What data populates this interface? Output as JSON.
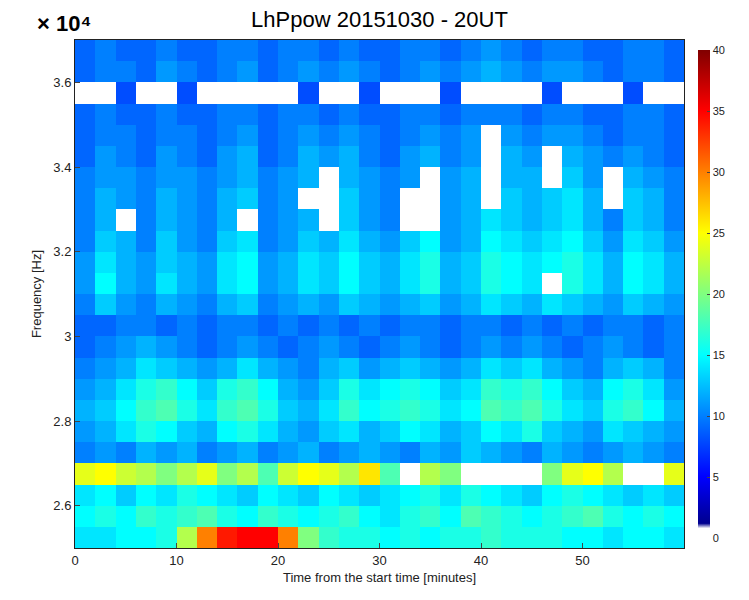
{
  "chart_data": {
    "type": "heatmap",
    "title": "LhPpow 20151030 - 20UT",
    "colorbar_title": "× 10⁴",
    "x_label": "Time from the start time [minutes]",
    "y_label": "Frequency [Hz]",
    "xlim": [
      0,
      60
    ],
    "xticks": [
      0,
      10,
      20,
      30,
      40,
      50
    ],
    "ylim": [
      2.5,
      3.7
    ],
    "yticks": [
      2.6,
      2.8,
      3,
      3.2,
      3.4,
      3.6
    ],
    "colorbar_range": [
      0,
      40
    ],
    "colorbar_ticks": [
      0,
      5,
      10,
      15,
      20,
      25,
      30,
      35,
      40
    ],
    "x": [
      1,
      3,
      5,
      7,
      9,
      11,
      13,
      15,
      17,
      19,
      21,
      23,
      25,
      27,
      29,
      31,
      33,
      35,
      37,
      39,
      41,
      43,
      45,
      47,
      49,
      51,
      53,
      55,
      57,
      59
    ],
    "y": [
      2.525,
      2.575,
      2.625,
      2.675,
      2.725,
      2.775,
      2.825,
      2.875,
      2.925,
      2.975,
      3.025,
      3.075,
      3.125,
      3.175,
      3.225,
      3.275,
      3.325,
      3.375,
      3.425,
      3.475,
      3.525,
      3.575,
      3.625,
      3.675
    ],
    "z": [
      [
        14,
        14,
        15,
        15,
        16,
        22,
        30,
        34,
        35,
        35,
        30,
        20,
        17,
        16,
        16,
        15,
        16,
        15,
        16,
        16,
        17,
        16,
        16,
        16,
        15,
        15,
        14,
        15,
        15,
        14
      ],
      [
        15,
        16,
        15,
        17,
        16,
        17,
        18,
        16,
        15,
        17,
        16,
        15,
        16,
        17,
        15,
        14,
        16,
        17,
        15,
        18,
        17,
        16,
        15,
        16,
        17,
        18,
        16,
        15,
        16,
        15
      ],
      [
        14,
        15,
        13,
        15,
        14,
        16,
        15,
        14,
        13,
        15,
        14,
        13,
        15,
        14,
        13,
        14,
        15,
        16,
        14,
        16,
        15,
        14,
        13,
        15,
        16,
        15,
        14,
        13,
        14,
        13
      ],
      [
        24,
        25,
        23,
        22,
        20,
        22,
        24,
        20,
        22,
        18,
        23,
        25,
        24,
        22,
        26,
        18,
        0,
        22,
        20,
        0,
        0,
        0,
        0,
        20,
        24,
        25,
        22,
        0,
        0,
        24
      ],
      [
        10,
        11,
        10,
        12,
        11,
        12,
        10,
        11,
        12,
        10,
        11,
        12,
        10,
        11,
        12,
        11,
        10,
        12,
        11,
        13,
        12,
        11,
        10,
        12,
        11,
        10,
        11,
        12,
        11,
        10
      ],
      [
        11,
        12,
        14,
        16,
        15,
        13,
        12,
        15,
        16,
        14,
        12,
        11,
        13,
        14,
        12,
        13,
        15,
        14,
        12,
        13,
        15,
        14,
        16,
        13,
        12,
        11,
        14,
        13,
        12,
        11
      ],
      [
        12,
        13,
        15,
        17,
        18,
        16,
        14,
        17,
        18,
        16,
        13,
        12,
        14,
        17,
        15,
        16,
        17,
        16,
        14,
        15,
        18,
        17,
        18,
        16,
        14,
        13,
        16,
        17,
        15,
        12
      ],
      [
        11,
        12,
        14,
        16,
        17,
        15,
        13,
        16,
        17,
        15,
        12,
        11,
        13,
        16,
        14,
        15,
        16,
        15,
        13,
        14,
        17,
        16,
        17,
        15,
        13,
        12,
        15,
        16,
        14,
        11
      ],
      [
        10,
        11,
        12,
        14,
        13,
        12,
        11,
        12,
        14,
        12,
        11,
        10,
        12,
        13,
        11,
        12,
        13,
        12,
        11,
        12,
        14,
        13,
        14,
        12,
        11,
        10,
        12,
        13,
        12,
        10
      ],
      [
        9,
        10,
        11,
        12,
        11,
        10,
        9,
        10,
        11,
        10,
        9,
        10,
        11,
        10,
        9,
        10,
        11,
        10,
        9,
        10,
        11,
        10,
        11,
        10,
        9,
        10,
        11,
        10,
        9,
        10
      ],
      [
        9,
        9,
        10,
        10,
        9,
        10,
        9,
        10,
        10,
        9,
        10,
        9,
        10,
        9,
        10,
        9,
        10,
        10,
        9,
        10,
        10,
        9,
        10,
        9,
        10,
        9,
        10,
        10,
        9,
        10
      ],
      [
        10,
        13,
        11,
        10,
        12,
        11,
        10,
        12,
        13,
        10,
        11,
        12,
        11,
        13,
        12,
        11,
        12,
        13,
        11,
        12,
        14,
        13,
        12,
        14,
        13,
        12,
        11,
        13,
        12,
        11
      ],
      [
        11,
        15,
        12,
        11,
        14,
        12,
        11,
        14,
        15,
        11,
        12,
        14,
        13,
        15,
        13,
        12,
        14,
        16,
        12,
        13,
        16,
        15,
        14,
        0,
        16,
        14,
        12,
        15,
        14,
        12
      ],
      [
        11,
        14,
        12,
        11,
        13,
        12,
        11,
        14,
        15,
        11,
        12,
        14,
        13,
        15,
        13,
        12,
        14,
        16,
        12,
        13,
        16,
        15,
        14,
        15,
        16,
        14,
        12,
        15,
        14,
        12
      ],
      [
        10,
        13,
        12,
        10,
        13,
        11,
        10,
        13,
        14,
        10,
        11,
        13,
        12,
        14,
        12,
        11,
        13,
        15,
        11,
        12,
        15,
        14,
        13,
        14,
        15,
        13,
        11,
        14,
        13,
        11
      ],
      [
        10,
        12,
        0,
        10,
        12,
        11,
        10,
        12,
        0,
        10,
        11,
        12,
        0,
        13,
        11,
        10,
        0,
        0,
        11,
        12,
        14,
        13,
        12,
        13,
        14,
        12,
        10,
        13,
        12,
        10
      ],
      [
        10,
        12,
        11,
        10,
        12,
        11,
        10,
        12,
        13,
        10,
        11,
        0,
        0,
        13,
        11,
        10,
        0,
        0,
        11,
        12,
        0,
        13,
        12,
        13,
        14,
        12,
        0,
        13,
        12,
        10
      ],
      [
        10,
        11,
        11,
        10,
        11,
        11,
        10,
        11,
        12,
        10,
        11,
        12,
        0,
        12,
        11,
        10,
        11,
        0,
        11,
        12,
        0,
        12,
        12,
        0,
        13,
        11,
        0,
        12,
        11,
        10
      ],
      [
        9,
        11,
        10,
        9,
        11,
        10,
        9,
        11,
        12,
        9,
        10,
        12,
        11,
        12,
        10,
        9,
        11,
        12,
        10,
        11,
        0,
        12,
        11,
        0,
        12,
        11,
        10,
        11,
        10,
        9
      ],
      [
        9,
        10,
        10,
        9,
        10,
        10,
        9,
        10,
        11,
        9,
        10,
        11,
        10,
        11,
        10,
        9,
        10,
        11,
        10,
        11,
        0,
        11,
        10,
        11,
        11,
        10,
        9,
        10,
        10,
        9
      ],
      [
        9,
        10,
        9,
        9,
        10,
        9,
        9,
        10,
        10,
        9,
        10,
        10,
        9,
        10,
        9,
        9,
        10,
        10,
        9,
        10,
        10,
        10,
        9,
        10,
        10,
        9,
        9,
        10,
        10,
        9
      ],
      [
        0,
        0,
        8,
        0,
        0,
        8,
        0,
        0,
        0,
        0,
        0,
        8,
        0,
        0,
        8,
        0,
        0,
        0,
        8,
        0,
        0,
        0,
        0,
        8,
        0,
        0,
        0,
        8,
        0,
        0
      ],
      [
        9,
        10,
        10,
        9,
        11,
        10,
        9,
        10,
        11,
        9,
        10,
        11,
        10,
        11,
        10,
        9,
        10,
        11,
        10,
        11,
        12,
        11,
        10,
        11,
        11,
        10,
        9,
        10,
        10,
        9
      ],
      [
        9,
        10,
        9,
        9,
        10,
        9,
        9,
        10,
        10,
        9,
        10,
        10,
        9,
        10,
        9,
        9,
        10,
        10,
        9,
        10,
        11,
        10,
        9,
        10,
        10,
        9,
        9,
        10,
        10,
        9
      ]
    ]
  }
}
